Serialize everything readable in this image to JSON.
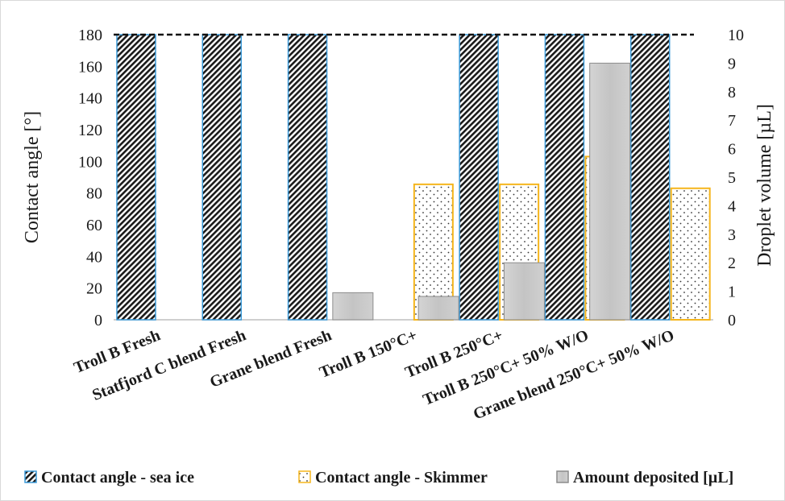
{
  "chart_data": {
    "type": "bar",
    "categories": [
      "Troll B Fresh",
      "Statfjord C blend Fresh",
      "Grane blend Fresh",
      "Troll B 150°C+",
      "Troll B 250°C+",
      "Troll B 250°C+ 50% W/O",
      "Grane blend  250°C+ 50% W/O"
    ],
    "series": [
      {
        "name": "Contact angle - sea ice",
        "axis": "left",
        "values": [
          180,
          180,
          180,
          null,
          180,
          180,
          180
        ],
        "fill": "diagonal-hatch",
        "colors": {
          "fill": "#1a1a1a",
          "edge": "#3a9ad9"
        }
      },
      {
        "name": "Contact angle - Skimmer",
        "axis": "left",
        "values": [
          null,
          null,
          null,
          85.5,
          85.5,
          103,
          83
        ],
        "fill": "dotted",
        "colors": {
          "fill": "#333333",
          "edge": "#f5b51c"
        }
      },
      {
        "name": "Amount deposited [µL]",
        "axis": "right",
        "values": [
          null,
          null,
          null,
          0.95,
          0.82,
          2.0,
          9.0
        ],
        "fill": "gradient",
        "colors": {
          "fill": "#c8c8c8",
          "edge": "#8c8c8c"
        }
      }
    ],
    "reference_line": {
      "value": 180,
      "axis": "left",
      "style": "dashed"
    },
    "ylabel": "Contact  angle  [°]",
    "y2label": "Droplet volume  [µL]",
    "ylim": [
      0,
      180
    ],
    "y2lim": [
      0,
      10
    ],
    "yticks": [
      "0",
      "20",
      "40",
      "60",
      "80",
      "100",
      "120",
      "140",
      "160",
      "180"
    ],
    "y2ticks": [
      "0",
      "1",
      "2",
      "3",
      "4",
      "5",
      "6",
      "7",
      "8",
      "9",
      "10"
    ],
    "grid": false,
    "legend": "bottom"
  }
}
